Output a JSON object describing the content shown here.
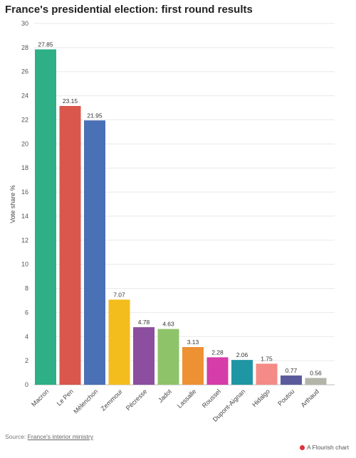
{
  "title": "France's presidential election: first round results",
  "source": {
    "prefix": "Source: ",
    "link_text": "France's interior ministry"
  },
  "brand": {
    "label": "A Flourish chart",
    "icon": "flourish-logo-icon"
  },
  "chart_data": {
    "type": "bar",
    "title": "France's presidential election: first round results",
    "xlabel": "",
    "ylabel": "Vote share %",
    "ylim": [
      0,
      30
    ],
    "yticks": [
      0,
      2,
      4,
      6,
      8,
      10,
      12,
      14,
      16,
      18,
      20,
      22,
      24,
      26,
      28,
      30
    ],
    "grid": true,
    "legend": "none",
    "categories": [
      "Macron",
      "Le Pen",
      "Mélenchon",
      "Zemmour",
      "Pécresse",
      "Jadot",
      "Lassalle",
      "Roussel",
      "Dupont-Aignan",
      "Hidalgo",
      "Poutou",
      "Arthaud"
    ],
    "values": [
      27.85,
      23.15,
      21.95,
      7.07,
      4.78,
      4.63,
      3.13,
      2.28,
      2.06,
      1.75,
      0.77,
      0.56
    ],
    "value_labels": [
      "27.85",
      "23.15",
      "21.95",
      "7.07",
      "4.78",
      "4.63",
      "3.13",
      "2.28",
      "2.06",
      "1.75",
      "0.77",
      "0.56"
    ],
    "colors": [
      "#2eaf86",
      "#d9574c",
      "#4a70b5",
      "#f2bd1d",
      "#8c4f9f",
      "#8fc36a",
      "#ee9133",
      "#d53da8",
      "#1e96a3",
      "#f58b86",
      "#5b5b9b",
      "#b2b5a8"
    ]
  }
}
